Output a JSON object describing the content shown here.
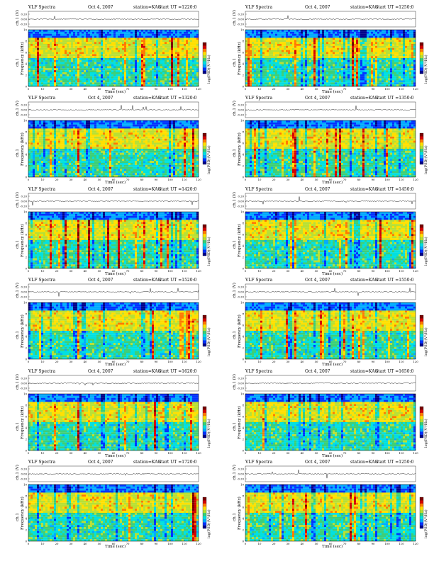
{
  "colors": {
    "colormap": [
      "#00008b",
      "#0033ff",
      "#00aaff",
      "#00e0e0",
      "#3ccf78",
      "#b8e034",
      "#ffe000",
      "#ff7a00",
      "#d40000",
      "#7a0000"
    ],
    "background": "#ffffff"
  },
  "labels": {
    "ch_axis": "ch.1 (V)",
    "freq_axis_ch": "ch.1",
    "freq_axis": "Frequency (kHz)",
    "colorbar": "log(PSD)(V²/Hz)",
    "time_axis": "Time (sec)"
  },
  "chart_data": [
    {
      "type": "heatmap",
      "title": "VLF Spectra",
      "date": "Oct 4, 2007",
      "station": "station=KAG",
      "start_ut": "start UT =1220:0",
      "xlim": [
        0,
        120
      ],
      "ylim": [
        0,
        10
      ],
      "x_ticks": [
        "0",
        "10",
        "20",
        "30",
        "40",
        "50",
        "60",
        "70",
        "80",
        "90",
        "100",
        "110",
        "120"
      ],
      "y_ticks": [
        "0",
        "2",
        "4",
        "6",
        "8",
        "10"
      ],
      "ch_ticks": [
        "0.20",
        "0.00",
        "-0.20"
      ],
      "xlabel": "Time (sec)",
      "ylabel": "Frequency (kHz)",
      "colorbar_label": "log(PSD)(V²/Hz)"
    },
    {
      "type": "heatmap",
      "title": "VLF Spectra",
      "date": "Oct 4, 2007",
      "station": "station=KAG",
      "start_ut": "start UT =1250:0",
      "xlim": [
        0,
        120
      ],
      "ylim": [
        0,
        10
      ],
      "x_ticks": [
        "0",
        "10",
        "20",
        "30",
        "40",
        "50",
        "60",
        "70",
        "80",
        "90",
        "100",
        "110",
        "120"
      ],
      "y_ticks": [
        "0",
        "2",
        "4",
        "6",
        "8",
        "10"
      ],
      "ch_ticks": [
        "0.20",
        "0.00",
        "-0.20"
      ],
      "xlabel": "Time (sec)",
      "ylabel": "Frequency (kHz)",
      "colorbar_label": "log(PSD)(V²/Hz)"
    },
    {
      "type": "heatmap",
      "title": "VLF Spectra",
      "date": "Oct 4, 2007",
      "station": "station=KAG",
      "start_ut": "start UT =1320:0",
      "xlim": [
        0,
        120
      ],
      "ylim": [
        0,
        10
      ],
      "x_ticks": [
        "0",
        "10",
        "20",
        "30",
        "40",
        "50",
        "60",
        "70",
        "80",
        "90",
        "100",
        "110",
        "120"
      ],
      "y_ticks": [
        "0",
        "2",
        "4",
        "6",
        "8",
        "10"
      ],
      "ch_ticks": [
        "0.20",
        "0.00",
        "-0.20"
      ],
      "xlabel": "Time (sec)",
      "ylabel": "Frequency (kHz)",
      "colorbar_label": "log(PSD)(V²/Hz)"
    },
    {
      "type": "heatmap",
      "title": "VLF Spectra",
      "date": "Oct 4, 2007",
      "station": "station=KAG",
      "start_ut": "start UT =1350:0",
      "xlim": [
        0,
        120
      ],
      "ylim": [
        0,
        10
      ],
      "x_ticks": [
        "0",
        "10",
        "20",
        "30",
        "40",
        "50",
        "60",
        "70",
        "80",
        "90",
        "100",
        "110",
        "120"
      ],
      "y_ticks": [
        "0",
        "2",
        "4",
        "6",
        "8",
        "10"
      ],
      "ch_ticks": [
        "0.20",
        "0.00",
        "-0.20"
      ],
      "xlabel": "Time (sec)",
      "ylabel": "Frequency (kHz)",
      "colorbar_label": "log(PSD)(V²/Hz)"
    },
    {
      "type": "heatmap",
      "title": "VLF Spectra",
      "date": "Oct 4, 2007",
      "station": "station=KAG",
      "start_ut": "start UT =1420:0",
      "xlim": [
        0,
        120
      ],
      "ylim": [
        0,
        10
      ],
      "x_ticks": [
        "0",
        "10",
        "20",
        "30",
        "40",
        "50",
        "60",
        "70",
        "80",
        "90",
        "100",
        "110",
        "120"
      ],
      "y_ticks": [
        "0",
        "2",
        "4",
        "6",
        "8",
        "10"
      ],
      "ch_ticks": [
        "0.20",
        "0.00",
        "-0.20"
      ],
      "xlabel": "Time (sec)",
      "ylabel": "Frequency (kHz)",
      "colorbar_label": "log(PSD)(V²/Hz)"
    },
    {
      "type": "heatmap",
      "title": "VLF Spectra",
      "date": "Oct 4, 2007",
      "station": "station=KAG",
      "start_ut": "start UT =1450:0",
      "xlim": [
        0,
        120
      ],
      "ylim": [
        0,
        10
      ],
      "x_ticks": [
        "0",
        "10",
        "20",
        "30",
        "40",
        "50",
        "60",
        "70",
        "80",
        "90",
        "100",
        "110",
        "120"
      ],
      "y_ticks": [
        "0",
        "2",
        "4",
        "6",
        "8",
        "10"
      ],
      "ch_ticks": [
        "0.20",
        "0.00",
        "-0.20"
      ],
      "xlabel": "Time (sec)",
      "ylabel": "Frequency (kHz)",
      "colorbar_label": "log(PSD)(V²/Hz)"
    },
    {
      "type": "heatmap",
      "title": "VLF Spectra",
      "date": "Oct 4, 2007",
      "station": "station=KAG",
      "start_ut": "start UT =1520:0",
      "xlim": [
        0,
        120
      ],
      "ylim": [
        0,
        10
      ],
      "x_ticks": [
        "0",
        "10",
        "20",
        "30",
        "40",
        "50",
        "60",
        "70",
        "80",
        "90",
        "100",
        "110",
        "120"
      ],
      "y_ticks": [
        "0",
        "2",
        "4",
        "6",
        "8",
        "10"
      ],
      "ch_ticks": [
        "0.20",
        "0.00",
        "-0.20"
      ],
      "xlabel": "Time (sec)",
      "ylabel": "Frequency (kHz)",
      "colorbar_label": "log(PSD)(V²/Hz)"
    },
    {
      "type": "heatmap",
      "title": "VLF Spectra",
      "date": "Oct 4, 2007",
      "station": "station=KAG",
      "start_ut": "start UT =1550:0",
      "xlim": [
        0,
        120
      ],
      "ylim": [
        0,
        10
      ],
      "x_ticks": [
        "0",
        "10",
        "20",
        "30",
        "40",
        "50",
        "60",
        "70",
        "80",
        "90",
        "100",
        "110",
        "120"
      ],
      "y_ticks": [
        "0",
        "2",
        "4",
        "6",
        "8",
        "10"
      ],
      "ch_ticks": [
        "0.20",
        "0.00",
        "-0.20"
      ],
      "xlabel": "Time (sec)",
      "ylabel": "Frequency (kHz)",
      "colorbar_label": "log(PSD)(V²/Hz)"
    },
    {
      "type": "heatmap",
      "title": "VLF Spectra",
      "date": "Oct 4, 2007",
      "station": "station=KAG",
      "start_ut": "start UT =1620:0",
      "xlim": [
        0,
        120
      ],
      "ylim": [
        0,
        10
      ],
      "x_ticks": [
        "0",
        "10",
        "20",
        "30",
        "40",
        "50",
        "60",
        "70",
        "80",
        "90",
        "100",
        "110",
        "120"
      ],
      "y_ticks": [
        "0",
        "2",
        "4",
        "6",
        "8",
        "10"
      ],
      "ch_ticks": [
        "0.20",
        "0.00",
        "-0.20"
      ],
      "xlabel": "Time (sec)",
      "ylabel": "Frequency (kHz)",
      "colorbar_label": "log(PSD)(V²/Hz)"
    },
    {
      "type": "heatmap",
      "title": "VLF Spectra",
      "date": "Oct 4, 2007",
      "station": "station=KAG",
      "start_ut": "start UT =1650:0",
      "xlim": [
        0,
        120
      ],
      "ylim": [
        0,
        10
      ],
      "x_ticks": [
        "0",
        "10",
        "20",
        "30",
        "40",
        "50",
        "60",
        "70",
        "80",
        "90",
        "100",
        "110",
        "120"
      ],
      "y_ticks": [
        "0",
        "2",
        "4",
        "6",
        "8",
        "10"
      ],
      "ch_ticks": [
        "0.20",
        "0.00",
        "-0.20"
      ],
      "xlabel": "Time (sec)",
      "ylabel": "Frequency (kHz)",
      "colorbar_label": "log(PSD)(V²/Hz)"
    },
    {
      "type": "heatmap",
      "title": "VLF Spectra",
      "date": "Oct 4, 2007",
      "station": "station=KAG",
      "start_ut": "start UT =1720:0",
      "xlim": [
        0,
        120
      ],
      "ylim": [
        0,
        10
      ],
      "x_ticks": [
        "0",
        "10",
        "20",
        "30",
        "40",
        "50",
        "60",
        "70",
        "80",
        "90",
        "100",
        "110",
        "120"
      ],
      "y_ticks": [
        "0",
        "2",
        "4",
        "6",
        "8",
        "10"
      ],
      "ch_ticks": [
        "0.20",
        "0.00",
        "-0.20"
      ],
      "xlabel": "Time (sec)",
      "ylabel": "Frequency (kHz)",
      "colorbar_label": "log(PSD)(V²/Hz)"
    },
    {
      "type": "heatmap",
      "title": "VLF Spectra",
      "date": "Oct 4, 2007",
      "station": "station=KAG",
      "start_ut": "start UT =1250:0",
      "xlim": [
        0,
        120
      ],
      "ylim": [
        0,
        10
      ],
      "x_ticks": [
        "0",
        "10",
        "20",
        "30",
        "40",
        "50",
        "60",
        "70",
        "80",
        "90",
        "100",
        "110",
        "120"
      ],
      "y_ticks": [
        "0",
        "2",
        "4",
        "6",
        "8",
        "10"
      ],
      "ch_ticks": [
        "0.20",
        "0.00",
        "-0.20"
      ],
      "xlabel": "Time (sec)",
      "ylabel": "Frequency (kHz)",
      "colorbar_label": "log(PSD)(V²/Hz)"
    }
  ]
}
